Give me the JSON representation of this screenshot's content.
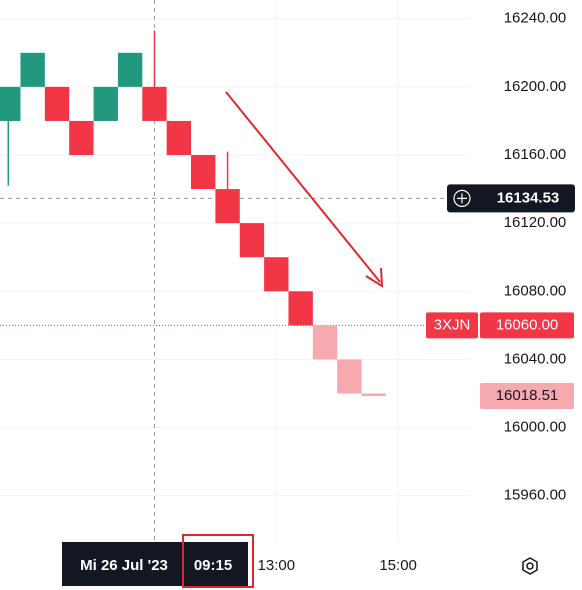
{
  "chart_data": {
    "type": "renko",
    "x": [
      0,
      1,
      2,
      3,
      4,
      5,
      6,
      7,
      8,
      9,
      10,
      11,
      12,
      13,
      14,
      15
    ],
    "open": [
      16180,
      16200,
      16200,
      16180,
      16180,
      16200,
      16200,
      16180,
      16160,
      16140,
      16120,
      16100,
      16080,
      16060,
      16040,
      16020
    ],
    "close": [
      16200,
      16220,
      16180,
      16160,
      16200,
      16220,
      16180,
      16160,
      16140,
      16120,
      16100,
      16080,
      16060,
      16040,
      16020,
      16018.51
    ],
    "wick": [
      16142,
      null,
      null,
      null,
      null,
      null,
      16233,
      null,
      null,
      16162,
      null,
      null,
      null,
      null,
      null,
      null
    ],
    "colors": [
      "#22997f",
      "#22997f",
      "#f23645",
      "#f23645",
      "#22997f",
      "#22997f",
      "#f23645",
      "#f23645",
      "#f23645",
      "#f23645",
      "#f23645",
      "#f23645",
      "#f23645",
      "#f7a9b0",
      "#f7a9b0",
      "#f7a9b0"
    ],
    "xlim": [
      -0.34,
      18.95
    ],
    "xticks": [
      {
        "value": 11,
        "label": "13:00"
      },
      {
        "value": 16,
        "label": "15:00"
      }
    ],
    "ylim": [
      15934,
      16251
    ],
    "yticks": [
      {
        "value": 15960,
        "label": "15960.00"
      },
      {
        "value": 16000,
        "label": "16000.00"
      },
      {
        "value": 16040,
        "label": "16040.00"
      },
      {
        "value": 16080,
        "label": "16080.00"
      },
      {
        "value": 16120,
        "label": "16120.00"
      },
      {
        "value": 16160,
        "label": "16160.00"
      },
      {
        "value": 16200,
        "label": "16200.00"
      },
      {
        "value": 16240,
        "label": "16240.00"
      }
    ],
    "grid": true,
    "crosshair": {
      "x": 6,
      "date_label": "Mi 26 Jul '23",
      "time_label": "09:15",
      "y": 16134.53
    },
    "last_price": {
      "value": 16060,
      "label": "16060.00",
      "symbol": "3XJN"
    },
    "projected_price": {
      "value": 16018.51
    }
  }
}
